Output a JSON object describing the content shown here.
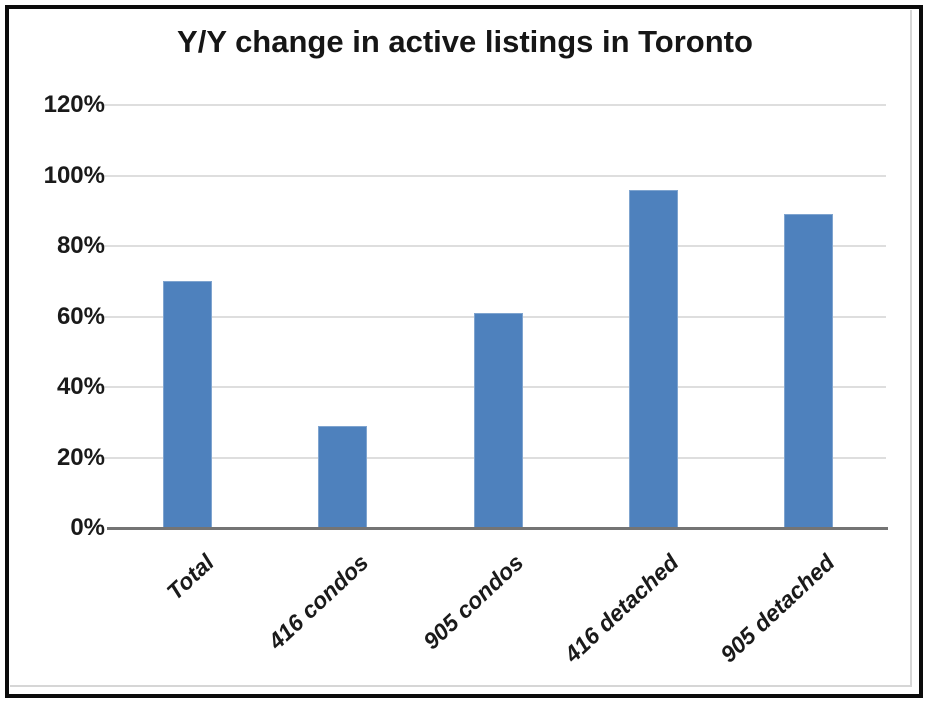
{
  "chart_data": {
    "type": "bar",
    "title": "Y/Y change in active listings in Toronto",
    "categories": [
      "Total",
      "416 condos",
      "905 condos",
      "416 detached",
      "905 detached"
    ],
    "values": [
      70,
      29,
      61,
      96,
      89
    ],
    "value_unit": "%",
    "xlabel": "",
    "ylabel": "",
    "ylim": [
      0,
      120
    ],
    "ytick_labels": [
      "0%",
      "20%",
      "40%",
      "60%",
      "80%",
      "100%",
      "120%"
    ],
    "ytick_values": [
      0,
      20,
      40,
      60,
      80,
      100,
      120
    ],
    "grid": true,
    "legend": false,
    "bar_color": "#4e81bd",
    "gridline_color": "#dedede",
    "axis_color": "#747474",
    "text_color": "#1a1a1a",
    "frame_color": "#0b0b0b"
  }
}
